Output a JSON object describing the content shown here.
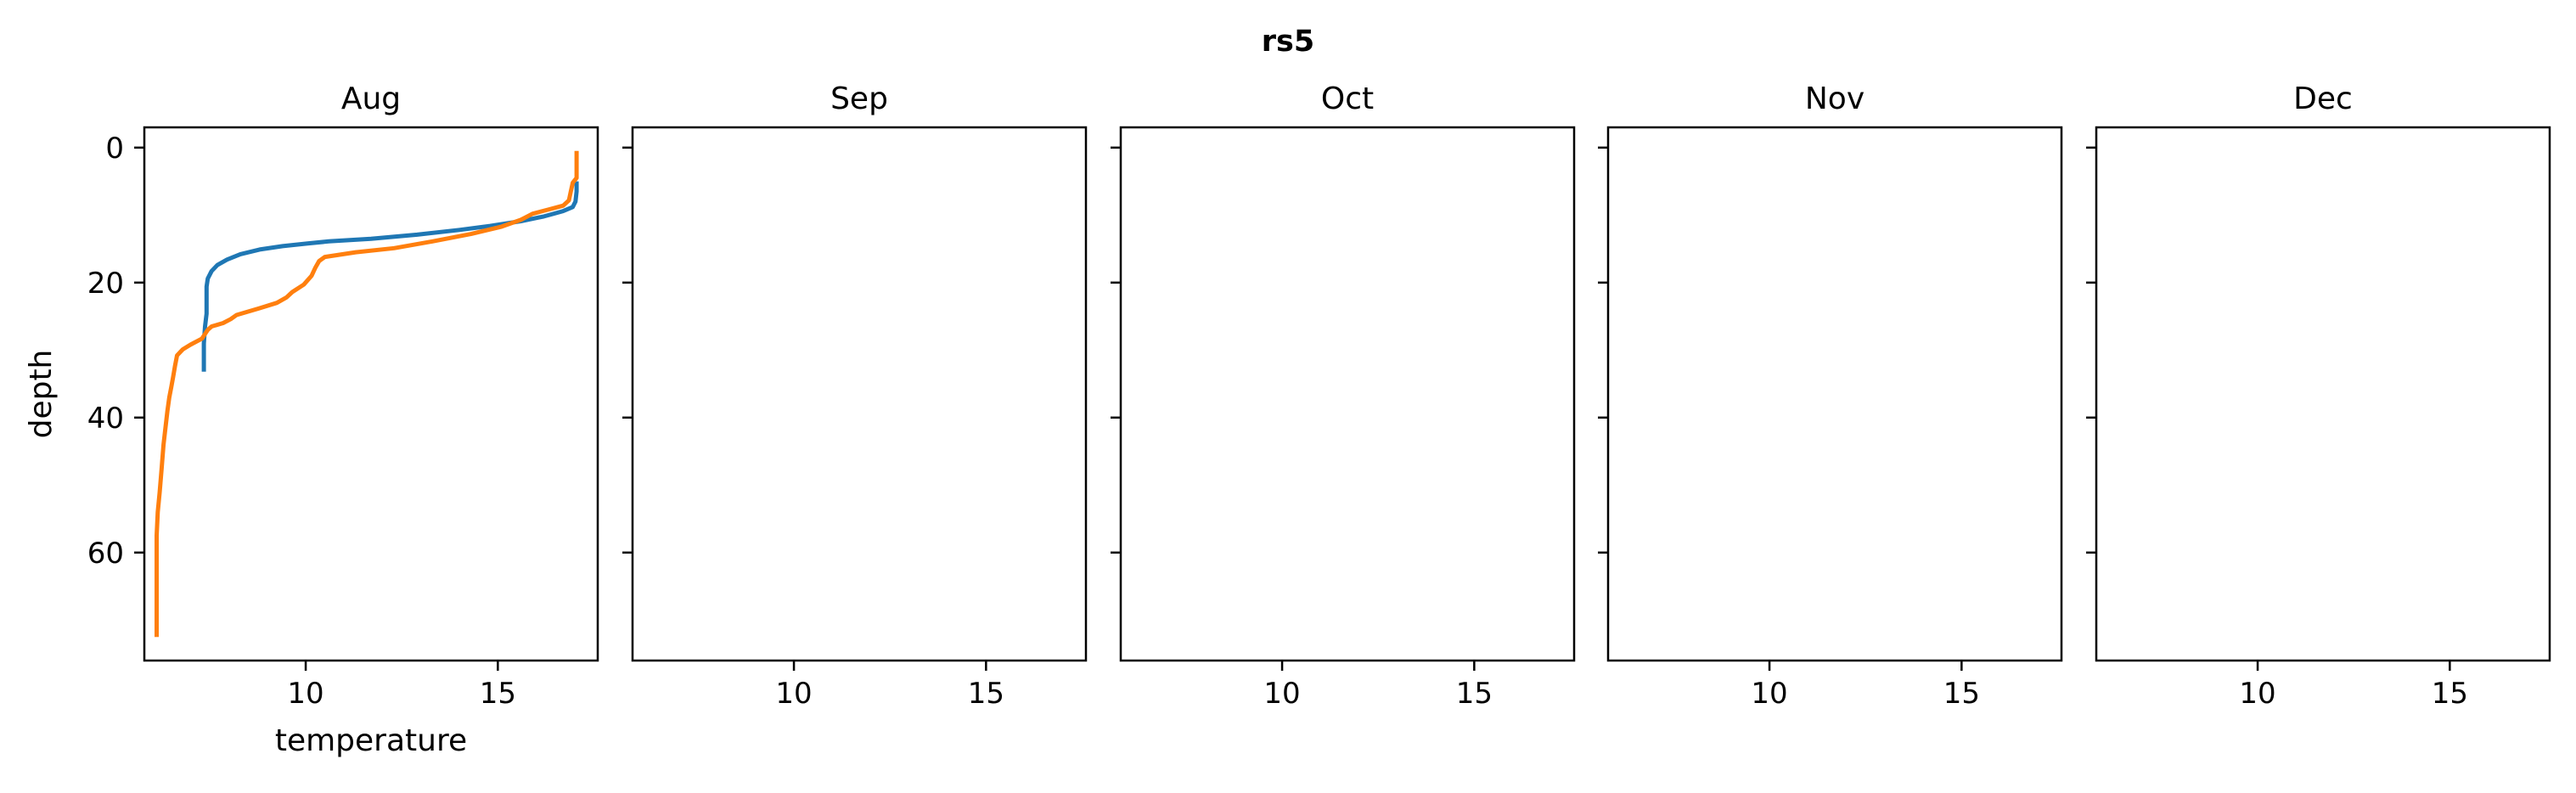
{
  "figure_title": "rs5",
  "shared_y_axis": {
    "label": "depth",
    "inverted": true,
    "range": [
      -3,
      76
    ],
    "ticks": [
      0,
      20,
      40,
      60
    ]
  },
  "shared_x_axis": {
    "label": "temperature",
    "range": [
      5.8,
      17.6
    ],
    "ticks": [
      10,
      15
    ]
  },
  "colors": {
    "series_1": "#1f77b4",
    "series_2": "#ff7f0e",
    "axes": "#000000"
  },
  "chart_data": [
    {
      "type": "line",
      "title": "Aug",
      "xlabel": "temperature",
      "ylabel": "depth",
      "xlim": [
        5.8,
        17.6
      ],
      "ylim": [
        76,
        -3
      ],
      "grid": false,
      "series": [
        {
          "color": "#1f77b4",
          "points": [
            [
              17.05,
              5
            ],
            [
              17.05,
              6.5
            ],
            [
              17.02,
              8
            ],
            [
              16.95,
              8.8
            ],
            [
              16.7,
              9.4
            ],
            [
              16.2,
              10.2
            ],
            [
              15.6,
              10.9
            ],
            [
              14.8,
              11.6
            ],
            [
              14.0,
              12.2
            ],
            [
              12.9,
              12.9
            ],
            [
              11.7,
              13.5
            ],
            [
              10.6,
              13.9
            ],
            [
              10.05,
              14.2
            ],
            [
              9.4,
              14.6
            ],
            [
              8.8,
              15.1
            ],
            [
              8.3,
              15.8
            ],
            [
              7.95,
              16.6
            ],
            [
              7.7,
              17.4
            ],
            [
              7.55,
              18.3
            ],
            [
              7.45,
              19.4
            ],
            [
              7.42,
              20.6
            ],
            [
              7.42,
              22.5
            ],
            [
              7.42,
              24.6
            ],
            [
              7.38,
              26.5
            ],
            [
              7.35,
              29
            ],
            [
              7.35,
              31.5
            ],
            [
              7.35,
              33.2
            ]
          ]
        },
        {
          "color": "#ff7f0e",
          "points": [
            [
              17.05,
              0.5
            ],
            [
              17.05,
              2.5
            ],
            [
              17.05,
              4.5
            ],
            [
              16.95,
              5.2
            ],
            [
              16.9,
              6.5
            ],
            [
              16.85,
              7.8
            ],
            [
              16.7,
              8.6
            ],
            [
              16.3,
              9.2
            ],
            [
              15.9,
              9.8
            ],
            [
              15.6,
              10.7
            ],
            [
              15.1,
              11.7
            ],
            [
              14.3,
              12.8
            ],
            [
              13.3,
              13.9
            ],
            [
              12.3,
              14.9
            ],
            [
              11.3,
              15.5
            ],
            [
              10.5,
              16.2
            ],
            [
              10.35,
              16.8
            ],
            [
              10.25,
              17.8
            ],
            [
              10.15,
              19.0
            ],
            [
              9.95,
              20.3
            ],
            [
              9.65,
              21.4
            ],
            [
              9.5,
              22.2
            ],
            [
              9.25,
              23.0
            ],
            [
              8.8,
              23.8
            ],
            [
              8.2,
              24.8
            ],
            [
              8.05,
              25.4
            ],
            [
              7.85,
              26.0
            ],
            [
              7.55,
              26.5
            ],
            [
              7.45,
              27.0
            ],
            [
              7.3,
              28.3
            ],
            [
              7.0,
              29.2
            ],
            [
              6.8,
              29.9
            ],
            [
              6.65,
              30.8
            ],
            [
              6.6,
              32.3
            ],
            [
              6.55,
              34.0
            ],
            [
              6.5,
              35.5
            ],
            [
              6.45,
              37.0
            ],
            [
              6.4,
              39.0
            ],
            [
              6.35,
              41.5
            ],
            [
              6.3,
              44.0
            ],
            [
              6.25,
              47.5
            ],
            [
              6.2,
              51.0
            ],
            [
              6.15,
              54.0
            ],
            [
              6.12,
              57.5
            ],
            [
              6.12,
              62.0
            ],
            [
              6.12,
              67.0
            ],
            [
              6.12,
              72.5
            ]
          ]
        }
      ]
    },
    {
      "type": "line",
      "title": "Sep",
      "xlim": [
        5.8,
        17.6
      ],
      "ylim": [
        76,
        -3
      ],
      "series": []
    },
    {
      "type": "line",
      "title": "Oct",
      "xlim": [
        5.8,
        17.6
      ],
      "ylim": [
        76,
        -3
      ],
      "series": []
    },
    {
      "type": "line",
      "title": "Nov",
      "xlim": [
        5.8,
        17.6
      ],
      "ylim": [
        76,
        -3
      ],
      "series": []
    },
    {
      "type": "line",
      "title": "Dec",
      "xlim": [
        5.8,
        17.6
      ],
      "ylim": [
        76,
        -3
      ],
      "series": []
    }
  ]
}
